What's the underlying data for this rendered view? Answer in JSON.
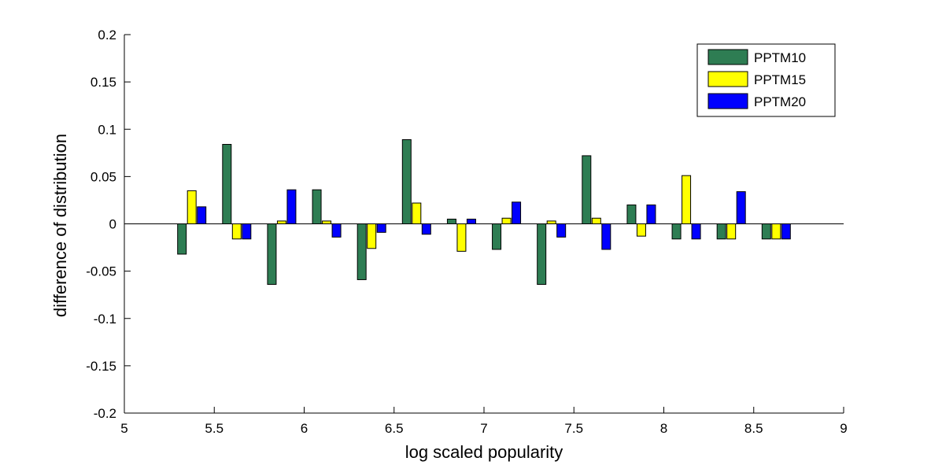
{
  "chart_data": {
    "type": "bar",
    "title": "",
    "xlabel": "log scaled popularity",
    "ylabel": "difference of distribution",
    "xlim": [
      5,
      9
    ],
    "ylim": [
      -0.2,
      0.2
    ],
    "xticks": [
      5,
      5.5,
      6,
      6.5,
      7,
      7.5,
      8,
      8.5,
      9
    ],
    "xtick_labels": [
      "5",
      "5.5",
      "6",
      "6.5",
      "7",
      "7.5",
      "8",
      "8.5",
      "9"
    ],
    "yticks": [
      -0.2,
      -0.15,
      -0.1,
      -0.05,
      0,
      0.05,
      0.1,
      0.15,
      0.2
    ],
    "ytick_labels": [
      "-0.2",
      "-0.15",
      "-0.1",
      "-0.05",
      "0",
      "0.05",
      "0.1",
      "0.15",
      "0.2"
    ],
    "x": [
      5.375,
      5.625,
      5.875,
      6.125,
      6.375,
      6.625,
      6.875,
      7.125,
      7.375,
      7.625,
      7.875,
      8.125,
      8.375,
      8.625
    ],
    "grid": false,
    "legend_position": "top-right",
    "series": [
      {
        "name": "PPTM10",
        "color": "#2e7d53",
        "values": [
          -0.032,
          0.084,
          -0.064,
          0.036,
          -0.059,
          0.089,
          0.005,
          -0.027,
          -0.064,
          0.072,
          0.02,
          -0.016,
          -0.016,
          -0.016
        ]
      },
      {
        "name": "PPTM15",
        "color": "#ffff00",
        "values": [
          0.035,
          -0.016,
          0.003,
          0.003,
          -0.026,
          0.022,
          -0.029,
          0.006,
          0.003,
          0.006,
          -0.013,
          0.051,
          -0.016,
          -0.016
        ]
      },
      {
        "name": "PPTM20",
        "color": "#0000ff",
        "values": [
          0.018,
          -0.016,
          0.036,
          -0.014,
          -0.009,
          -0.011,
          0.005,
          0.023,
          -0.014,
          -0.027,
          0.02,
          -0.016,
          0.034,
          -0.016
        ]
      }
    ]
  }
}
